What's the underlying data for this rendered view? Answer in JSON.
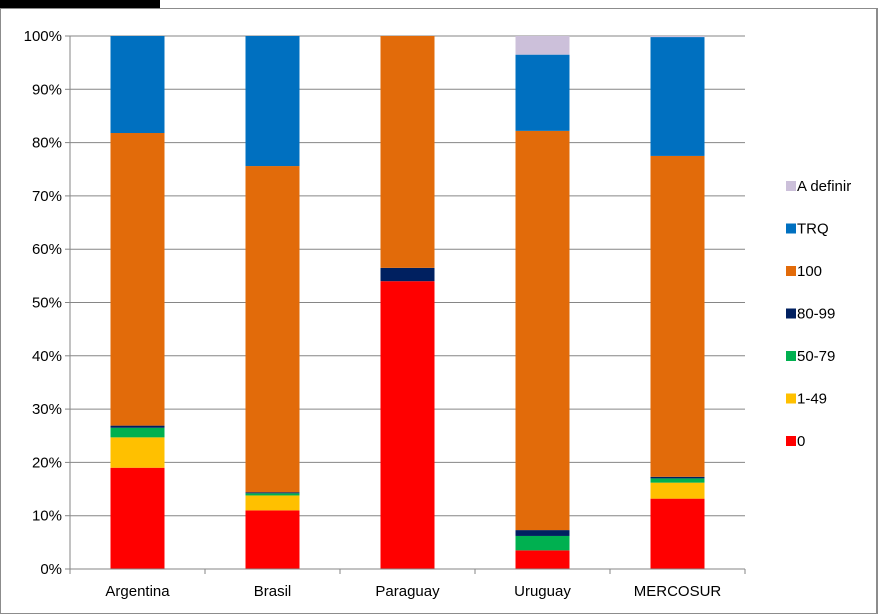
{
  "chart_data": {
    "type": "bar",
    "stacked": true,
    "percent": true,
    "title": "",
    "xlabel": "",
    "ylabel": "",
    "ylim": [
      0,
      100
    ],
    "y_ticks": [
      "0%",
      "10%",
      "20%",
      "30%",
      "40%",
      "50%",
      "60%",
      "70%",
      "80%",
      "90%",
      "100%"
    ],
    "categories": [
      "Argentina",
      "Brasil",
      "Paraguay",
      "Uruguay",
      "MERCOSUR"
    ],
    "series": [
      {
        "name": "0",
        "color": "#ff0000",
        "values": [
          19.0,
          11.0,
          54.0,
          3.5,
          13.2
        ]
      },
      {
        "name": "1-49",
        "color": "#ffc000",
        "values": [
          5.7,
          2.8,
          0.0,
          0.0,
          3.0
        ]
      },
      {
        "name": "50-79",
        "color": "#00b050",
        "values": [
          1.8,
          0.4,
          0.0,
          2.7,
          0.8
        ]
      },
      {
        "name": "80-99",
        "color": "#002060",
        "values": [
          0.4,
          0.2,
          2.5,
          1.1,
          0.3
        ]
      },
      {
        "name": "100",
        "color": "#e26b0a",
        "values": [
          54.9,
          61.2,
          43.5,
          74.9,
          60.2
        ]
      },
      {
        "name": "TRQ",
        "color": "#0070c0",
        "values": [
          18.2,
          24.4,
          0.0,
          14.3,
          22.3
        ]
      },
      {
        "name": "A definir",
        "color": "#ccc0da",
        "values": [
          0.0,
          0.0,
          0.0,
          3.5,
          0.2
        ]
      }
    ],
    "legend_position": "right",
    "grid": true
  }
}
